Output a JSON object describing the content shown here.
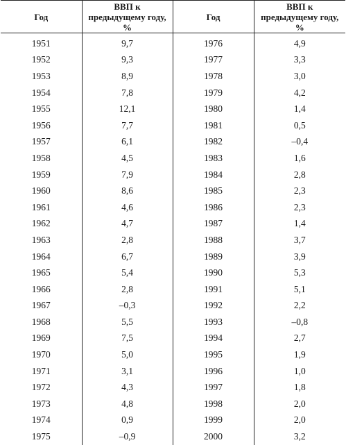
{
  "table": {
    "headers": [
      "Год",
      "ВВП к предыдущему году, %",
      "Год",
      "ВВП к предыдущему году, %"
    ],
    "rows": [
      [
        "1951",
        "9,7",
        "1976",
        "4,9"
      ],
      [
        "1952",
        "9,3",
        "1977",
        "3,3"
      ],
      [
        "1953",
        "8,9",
        "1978",
        "3,0"
      ],
      [
        "1954",
        "7,8",
        "1979",
        "4,2"
      ],
      [
        "1955",
        "12,1",
        "1980",
        "1,4"
      ],
      [
        "1956",
        "7,7",
        "1981",
        "0,5"
      ],
      [
        "1957",
        "6,1",
        "1982",
        "–0,4"
      ],
      [
        "1958",
        "4,5",
        "1983",
        "1,6"
      ],
      [
        "1959",
        "7,9",
        "1984",
        "2,8"
      ],
      [
        "1960",
        "8,6",
        "1985",
        "2,3"
      ],
      [
        "1961",
        "4,6",
        "1986",
        "2,3"
      ],
      [
        "1962",
        "4,7",
        "1987",
        "1,4"
      ],
      [
        "1963",
        "2,8",
        "1988",
        "3,7"
      ],
      [
        "1964",
        "6,7",
        "1989",
        "3,9"
      ],
      [
        "1965",
        "5,4",
        "1990",
        "5,3"
      ],
      [
        "1966",
        "2,8",
        "1991",
        "5,1"
      ],
      [
        "1967",
        "–0,3",
        "1992",
        "2,2"
      ],
      [
        "1968",
        "5,5",
        "1993",
        "–0,8"
      ],
      [
        "1969",
        "7,5",
        "1994",
        "2,7"
      ],
      [
        "1970",
        "5,0",
        "1995",
        "1,9"
      ],
      [
        "1971",
        "3,1",
        "1996",
        "1,0"
      ],
      [
        "1972",
        "4,3",
        "1997",
        "1,8"
      ],
      [
        "1973",
        "4,8",
        "1998",
        "2,0"
      ],
      [
        "1974",
        "0,9",
        "1999",
        "2,0"
      ],
      [
        "1975",
        "–0,9",
        "2000",
        "3,2"
      ]
    ]
  }
}
